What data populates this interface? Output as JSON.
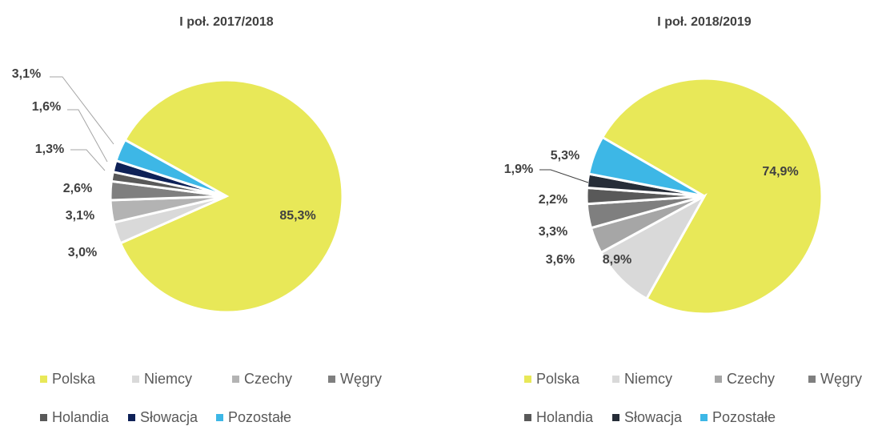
{
  "chart_data": [
    {
      "type": "pie",
      "title": "I poł. 2017/2018",
      "categories": [
        "Polska",
        "Niemcy",
        "Czechy",
        "Węgry",
        "Holandia",
        "Słowacja",
        "Pozostałe"
      ],
      "values": [
        85.3,
        3.0,
        3.1,
        2.6,
        1.3,
        1.6,
        3.1
      ],
      "value_labels": [
        "85,3%",
        "3,0%",
        "3,1%",
        "2,6%",
        "1,3%",
        "1,6%",
        "3,1%"
      ],
      "colors": [
        "#e8e858",
        "#d9d9d9",
        "#b3b3b3",
        "#7f7f7f",
        "#595959",
        "#0e2157",
        "#3db7e6"
      ]
    },
    {
      "type": "pie",
      "title": "I poł. 2018/2019",
      "categories": [
        "Polska",
        "Niemcy",
        "Czechy",
        "Węgry",
        "Holandia",
        "Słowacja",
        "Pozostałe"
      ],
      "values": [
        74.9,
        8.9,
        3.6,
        3.3,
        2.2,
        1.9,
        5.3
      ],
      "value_labels": [
        "74,9%",
        "8,9%",
        "3,6%",
        "3,3%",
        "2,2%",
        "1,9%",
        "5,3%"
      ],
      "colors": [
        "#e8e858",
        "#d9d9d9",
        "#a6a6a6",
        "#7f7f7f",
        "#595959",
        "#262d38",
        "#3db7e6"
      ]
    }
  ]
}
